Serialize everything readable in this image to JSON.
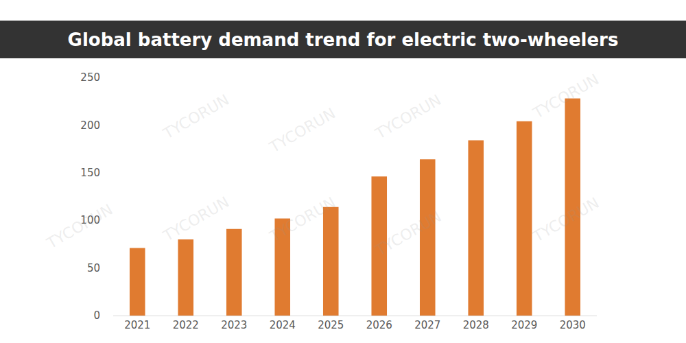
{
  "chart_data": {
    "type": "bar",
    "title": "Global battery demand trend for electric two-wheelers",
    "categories": [
      "2021",
      "2022",
      "2023",
      "2024",
      "2025",
      "2026",
      "2027",
      "2028",
      "2029",
      "2030"
    ],
    "values": [
      71,
      80,
      91,
      102,
      114,
      146,
      164,
      184,
      204,
      228
    ],
    "color": "#e07b30",
    "ylim": [
      0,
      250
    ],
    "yticks": [
      0,
      50,
      100,
      150,
      200,
      250
    ],
    "grid": false,
    "annotations": [
      "TYCORUN"
    ]
  }
}
